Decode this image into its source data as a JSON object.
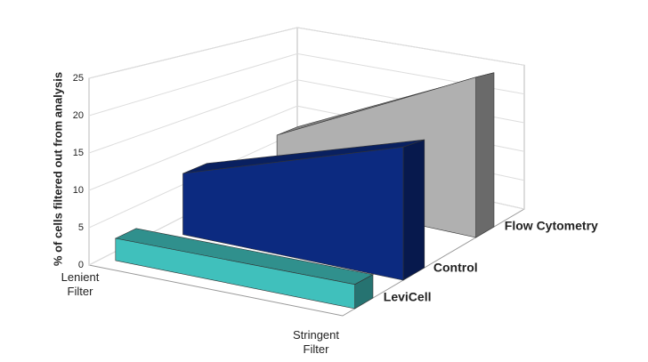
{
  "chart_data": {
    "type": "area3d",
    "y_label": "% of cells filtered out from analysis",
    "categories": [
      "Lenient Filter",
      "Stringent Filter"
    ],
    "series": [
      {
        "name": "LeviCell",
        "color": "#40c0bc",
        "values": [
          3,
          3
        ]
      },
      {
        "name": "Control",
        "color": "#0c2a80",
        "values": [
          9,
          18
        ]
      },
      {
        "name": "Flow Cytometry",
        "color": "#b0b0b0",
        "values": [
          10,
          25
        ]
      }
    ],
    "ylim": [
      0,
      25
    ],
    "yticks": [
      0,
      5,
      10,
      15,
      20,
      25
    ],
    "grid": true
  }
}
